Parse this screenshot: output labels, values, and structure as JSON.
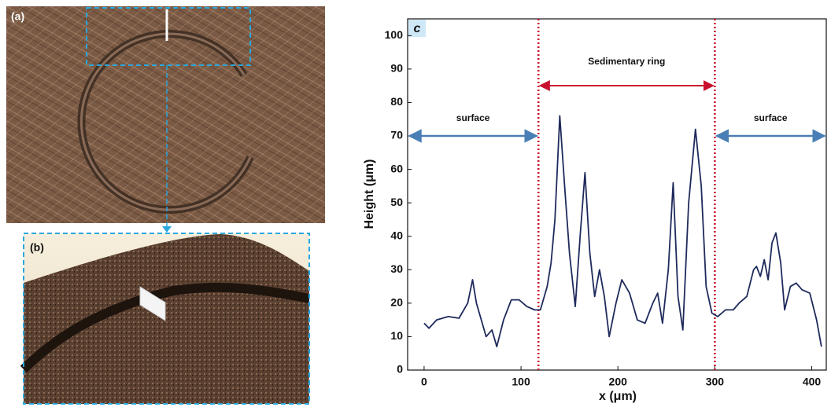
{
  "panels": {
    "a": "(a)",
    "b": "(b)"
  },
  "chart_data": {
    "type": "line",
    "panel_label": "c",
    "x_label": "x (μm)",
    "y_label": "Height (μm)",
    "annotations": {
      "ring": "Sedimentary ring",
      "surface_left": "surface",
      "surface_right": "surface"
    },
    "vlines": [
      118,
      300
    ],
    "vline_color": "#c8102e",
    "xlim": [
      -17,
      415
    ],
    "ylim": [
      0,
      105
    ],
    "xticks": [
      0,
      100,
      200,
      300,
      400
    ],
    "yticks": [
      0,
      10,
      20,
      30,
      40,
      50,
      60,
      70,
      80,
      90,
      100
    ],
    "color": "#1f2a5c",
    "x": [
      0,
      5,
      13,
      25,
      36,
      45,
      50,
      54,
      59,
      64,
      70,
      75,
      82,
      90,
      98,
      106,
      114,
      120,
      127,
      131,
      135,
      140,
      145,
      150,
      156,
      161,
      166,
      171,
      176,
      181,
      186,
      191,
      198,
      204,
      212,
      220,
      228,
      236,
      241,
      246,
      252,
      257,
      262,
      267,
      273,
      280,
      286,
      291,
      297,
      303,
      311,
      319,
      325,
      333,
      340,
      343,
      347,
      351,
      355,
      359,
      363,
      368,
      372,
      378,
      384,
      390,
      398,
      405,
      410
    ],
    "values": [
      14,
      12.5,
      15,
      16,
      15.5,
      20,
      27,
      20,
      15,
      10,
      12,
      7,
      15,
      21,
      21,
      19,
      18,
      18,
      25,
      32,
      45,
      76,
      55,
      35,
      19,
      40,
      59,
      35,
      22,
      30,
      22,
      10,
      20,
      27,
      23,
      15,
      14,
      20,
      23,
      14,
      30,
      56,
      22,
      12,
      50,
      72,
      55,
      25,
      17,
      16,
      18,
      18,
      20,
      22,
      30,
      31,
      28,
      33,
      27,
      38,
      41,
      32,
      18,
      25,
      26,
      24,
      23,
      15,
      7
    ]
  }
}
